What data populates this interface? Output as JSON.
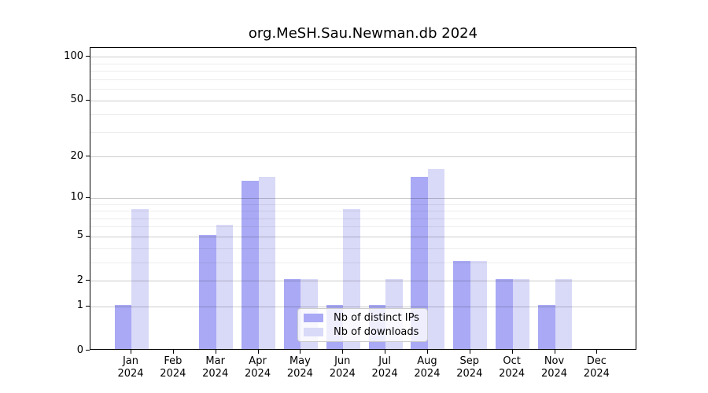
{
  "chart_data": {
    "type": "bar",
    "title": "org.MeSH.Sau.Newman.db 2024",
    "categories": [
      "Jan",
      "Feb",
      "Mar",
      "Apr",
      "May",
      "Jun",
      "Jul",
      "Aug",
      "Sep",
      "Oct",
      "Nov",
      "Dec"
    ],
    "x_year_label": "2024",
    "series": [
      {
        "name": "Nb of distinct IPs",
        "color": "#a9a9f5",
        "values": [
          1,
          0,
          5,
          13,
          2,
          1,
          1,
          14,
          3,
          2,
          1,
          0
        ]
      },
      {
        "name": "Nb of downloads",
        "color": "#d9d9f8",
        "values": [
          8,
          0,
          6,
          14,
          2,
          8,
          2,
          16,
          3,
          2,
          2,
          0
        ]
      }
    ],
    "y_scale": "log1p",
    "ylim": [
      0,
      115
    ],
    "y_ticks": [
      0,
      1,
      2,
      5,
      10,
      20,
      50,
      100
    ],
    "y_minor_gridlines": [
      3,
      4,
      6,
      7,
      8,
      9,
      30,
      40,
      60,
      70,
      80,
      90
    ],
    "xlabel": "",
    "ylabel": "",
    "grid": true,
    "legend_position": "lower center"
  }
}
